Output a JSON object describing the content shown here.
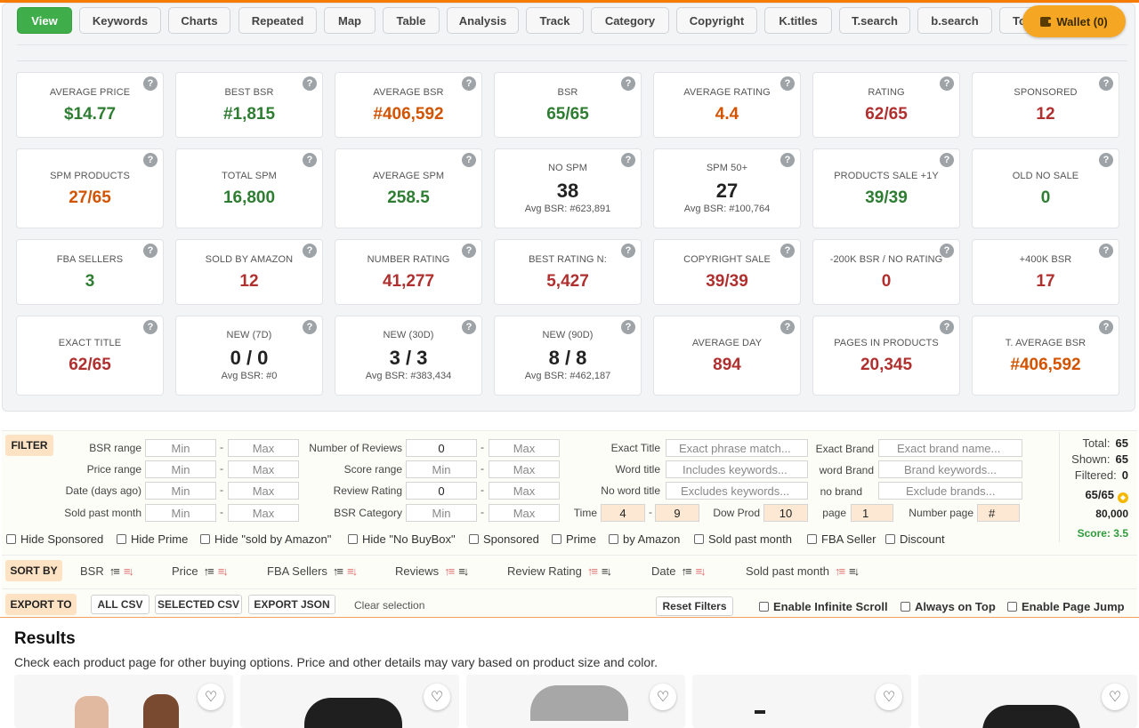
{
  "tabs": [
    "View",
    "Keywords",
    "Charts",
    "Repeated",
    "Map",
    "Table",
    "Analysis",
    "Track",
    "Category",
    "Copyright",
    "K.titles",
    "T.search",
    "b.search",
    "To"
  ],
  "wallet": {
    "label": "Wallet (0)"
  },
  "help_glyph": "?",
  "metrics": [
    {
      "label": "AVERAGE PRICE",
      "value": "$14.77",
      "color": "green"
    },
    {
      "label": "BEST BSR",
      "value": "#1,815",
      "color": "green"
    },
    {
      "label": "AVERAGE BSR",
      "value": "#406,592",
      "color": "orange"
    },
    {
      "label": "BSR",
      "value": "65/65",
      "color": "green"
    },
    {
      "label": "AVERAGE RATING",
      "value": "4.4",
      "color": "orange"
    },
    {
      "label": "RATING",
      "value": "62/65",
      "color": "red"
    },
    {
      "label": "SPONSORED",
      "value": "12",
      "color": "red"
    },
    {
      "label": "SPM PRODUCTS",
      "value": "27/65",
      "color": "orange"
    },
    {
      "label": "TOTAL SPM",
      "value": "16,800",
      "color": "green"
    },
    {
      "label": "AVERAGE SPM",
      "value": "258.5",
      "color": "green"
    },
    {
      "label": "NO SPM",
      "value": "38",
      "color": "black",
      "sub": "Avg BSR: #623,891"
    },
    {
      "label": "SPM 50+",
      "value": "27",
      "color": "black",
      "sub": "Avg BSR: #100,764"
    },
    {
      "label": "PRODUCTS SALE +1Y",
      "value": "39/39",
      "color": "green"
    },
    {
      "label": "OLD NO SALE",
      "value": "0",
      "color": "green"
    },
    {
      "label": "FBA SELLERS",
      "value": "3",
      "color": "green"
    },
    {
      "label": "SOLD BY AMAZON",
      "value": "12",
      "color": "red"
    },
    {
      "label": "NUMBER RATING",
      "value": "41,277",
      "color": "red"
    },
    {
      "label": "BEST RATING N:",
      "value": "5,427",
      "color": "red"
    },
    {
      "label": "COPYRIGHT SALE",
      "value": "39/39",
      "color": "red"
    },
    {
      "label": "-200K BSR / NO RATING",
      "value": "0",
      "color": "red"
    },
    {
      "label": "+400K BSR",
      "value": "17",
      "color": "red"
    },
    {
      "label": "EXACT TITLE",
      "value": "62/65",
      "color": "red"
    },
    {
      "label": "NEW (7D)",
      "value": "0 / 0",
      "color": "black",
      "sub": "Avg BSR: #0"
    },
    {
      "label": "NEW (30D)",
      "value": "3 / 3",
      "color": "black",
      "sub": "Avg BSR: #383,434"
    },
    {
      "label": "NEW (90D)",
      "value": "8 / 8",
      "color": "black",
      "sub": "Avg BSR: #462,187"
    },
    {
      "label": "AVERAGE DAY",
      "value": "894",
      "color": "red"
    },
    {
      "label": "PAGES IN PRODUCTS",
      "value": "20,345",
      "color": "red"
    },
    {
      "label": "T. AVERAGE BSR",
      "value": "#406,592",
      "color": "orange"
    }
  ],
  "filter": {
    "badge": "FILTER",
    "dash": "-",
    "bsr_range": {
      "label": "BSR range",
      "min": "Min",
      "max": "Max"
    },
    "price_range": {
      "label": "Price range",
      "min": "Min",
      "max": "Max"
    },
    "date_range": {
      "label": "Date (days ago)",
      "min": "Min",
      "max": "Max"
    },
    "sold_past_month": {
      "label": "Sold past month",
      "min": "Min",
      "max": "Max"
    },
    "number_of_reviews": {
      "label": "Number of Reviews",
      "min": "0",
      "max": "Max"
    },
    "score_range": {
      "label": "Score range",
      "min": "Min",
      "max": "Max"
    },
    "review_rating": {
      "label": "Review Rating",
      "min": "0",
      "max": "Max"
    },
    "bsr_category": {
      "label": "BSR Category",
      "min": "Min",
      "max": "Max"
    },
    "exact_title": {
      "label": "Exact Title",
      "placeholder": "Exact phrase match..."
    },
    "word_title": {
      "label": "Word title",
      "placeholder": "Includes keywords..."
    },
    "no_word_title": {
      "label": "No word title",
      "placeholder": "Excludes keywords..."
    },
    "time": {
      "label": "Time",
      "from": "4",
      "to": "9"
    },
    "dow_prod": {
      "label": "Dow Prod",
      "value": "10"
    },
    "exact_brand": {
      "label": "Exact Brand",
      "placeholder": "Exact brand name..."
    },
    "word_brand": {
      "label": "word Brand",
      "placeholder": "Brand keywords..."
    },
    "no_brand": {
      "label": "no brand",
      "placeholder": "Exclude brands..."
    },
    "page": {
      "label": "page",
      "value": "1"
    },
    "number_page": {
      "label": "Number page",
      "placeholder": "#"
    }
  },
  "stats": {
    "total_label": "Total:",
    "total": "65",
    "shown_label": "Shown:",
    "shown": "65",
    "filtered_label": "Filtered:",
    "filtered": "0",
    "ratio": "65/65",
    "amount": "80,000",
    "score": "Score: 3.5"
  },
  "checkboxes": [
    "Hide Sponsored",
    "Hide Prime",
    "Hide \"sold by Amazon\"",
    "Hide \"No BuyBox\"",
    "Sponsored",
    "Prime",
    "by Amazon",
    "Sold past month",
    "FBA Seller",
    "Discount"
  ],
  "sort": {
    "badge": "SORT BY",
    "items": [
      "BSR",
      "Price",
      "FBA Sellers",
      "Reviews",
      "Review Rating",
      "Date",
      "Sold past month"
    ]
  },
  "export": {
    "badge": "EXPORT TO",
    "buttons": [
      "ALL CSV",
      "SELECTED CSV",
      "EXPORT JSON"
    ],
    "clear": "Clear selection",
    "reset": "Reset Filters",
    "options": [
      "Enable Infinite Scroll",
      "Always on Top",
      "Enable Page Jump"
    ]
  },
  "results": {
    "title": "Results",
    "subtitle": "Check each product page for other buying options. Price and other details may vary based on product size and color."
  },
  "colors": {
    "green": "#2e7d32",
    "orange": "#d35400",
    "red": "#b03030",
    "active_tab": "#3fae4a",
    "wallet": "#f5a623",
    "badge": "#fde2c4"
  }
}
